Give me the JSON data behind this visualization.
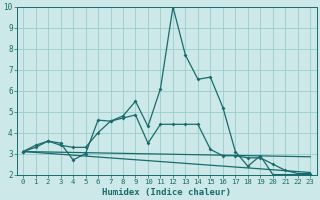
{
  "xlabel": "Humidex (Indice chaleur)",
  "background_color": "#cce8e8",
  "grid_color": "#99cccc",
  "line_color": "#1a6b6b",
  "xlim": [
    -0.5,
    23.5
  ],
  "ylim": [
    2,
    10
  ],
  "yticks": [
    2,
    3,
    4,
    5,
    6,
    7,
    8,
    9,
    10
  ],
  "xticks": [
    0,
    1,
    2,
    3,
    4,
    5,
    6,
    7,
    8,
    9,
    10,
    11,
    12,
    13,
    14,
    15,
    16,
    17,
    18,
    19,
    20,
    21,
    22,
    23
  ],
  "line1_x": [
    0,
    1,
    2,
    3,
    4,
    5,
    6,
    7,
    8,
    9,
    10,
    11,
    12,
    13,
    14,
    15,
    16,
    17,
    18,
    19,
    20,
    21,
    22,
    23
  ],
  "line1_y": [
    3.1,
    3.4,
    3.6,
    3.5,
    2.7,
    3.0,
    4.6,
    4.55,
    4.8,
    5.5,
    4.3,
    6.1,
    10.0,
    7.7,
    6.55,
    6.65,
    5.2,
    3.1,
    2.4,
    2.9,
    2.0,
    2.0,
    2.0,
    2.0
  ],
  "line2_x": [
    0,
    1,
    2,
    3,
    4,
    5,
    6,
    7,
    8,
    9,
    10,
    11,
    12,
    13,
    14,
    15,
    16,
    17,
    18,
    19,
    20,
    21,
    22,
    23
  ],
  "line2_y": [
    3.1,
    3.3,
    3.6,
    3.4,
    3.3,
    3.3,
    4.0,
    4.55,
    4.7,
    4.85,
    3.5,
    4.4,
    4.4,
    4.4,
    4.4,
    3.2,
    2.9,
    2.9,
    2.8,
    2.8,
    2.5,
    2.2,
    2.05,
    2.05
  ],
  "line3_x": [
    0,
    23
  ],
  "line3_y": [
    3.1,
    2.85
  ],
  "line4_x": [
    0,
    23
  ],
  "line4_y": [
    3.1,
    2.1
  ]
}
